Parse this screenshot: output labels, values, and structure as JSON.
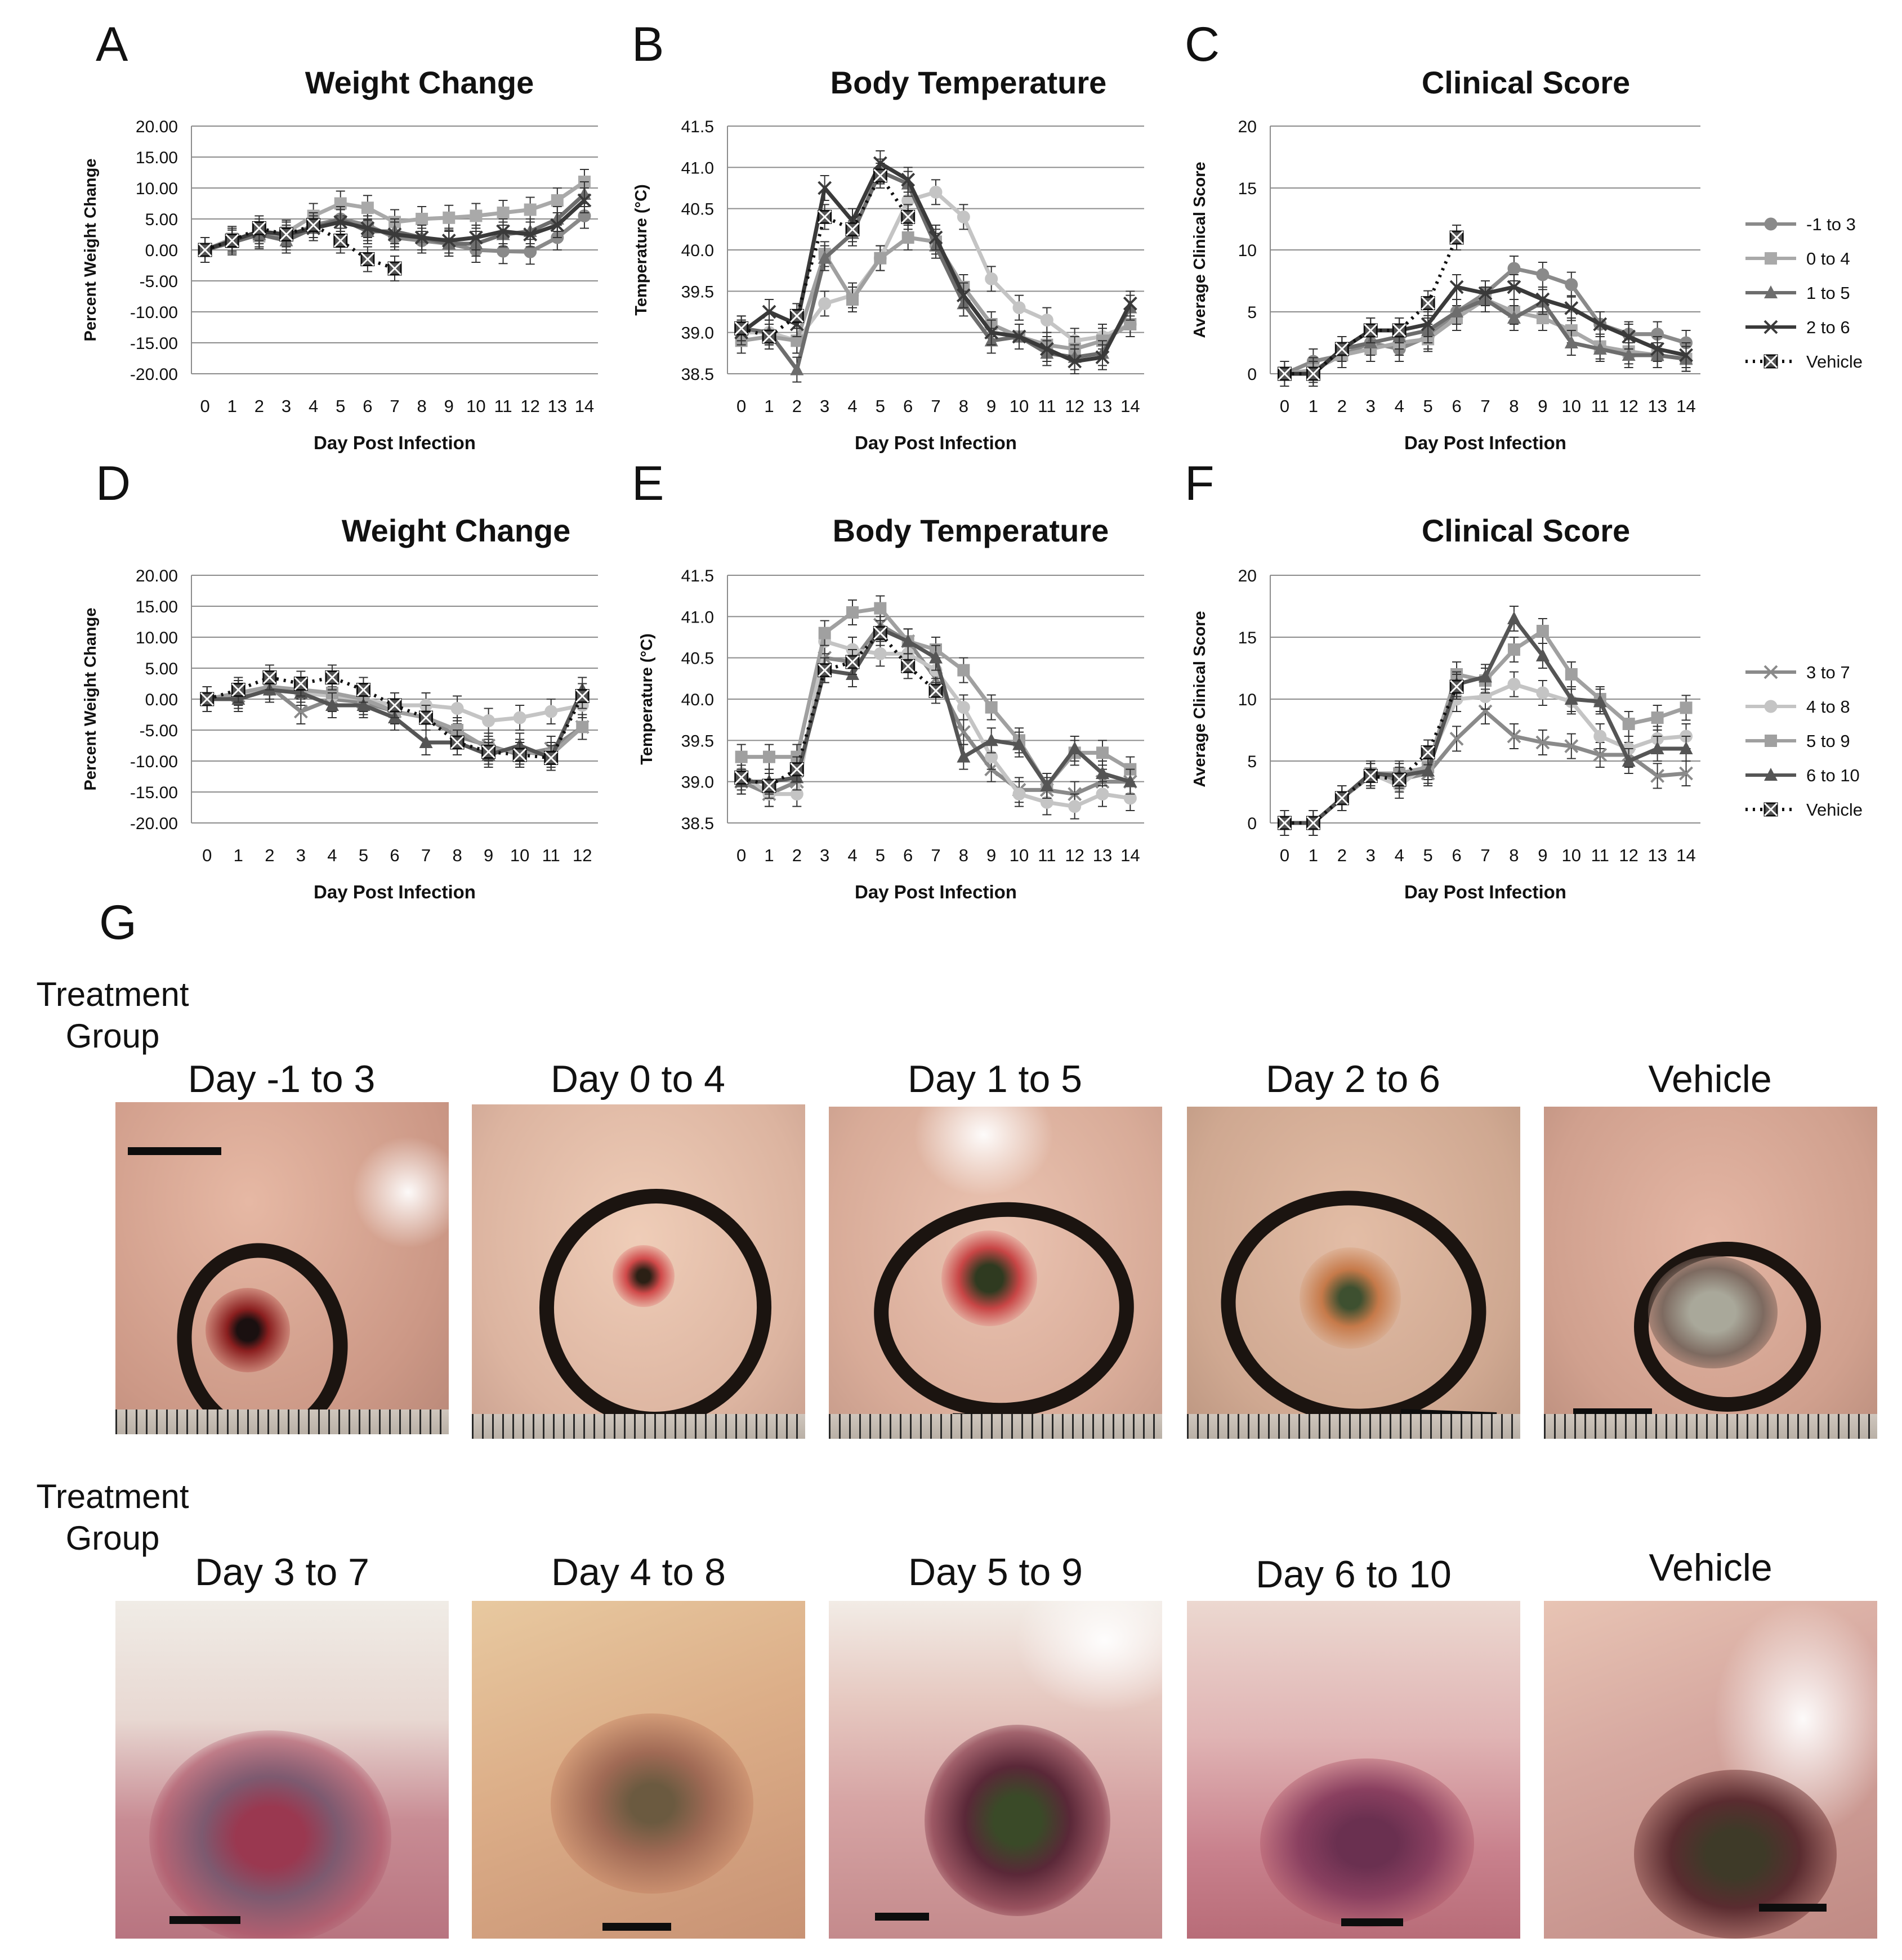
{
  "panel_letters": [
    "A",
    "B",
    "C",
    "D",
    "E",
    "F",
    "G"
  ],
  "chart_data": [
    {
      "id": "A",
      "type": "line",
      "title": "Weight Change",
      "xlabel": "Day Post Infection",
      "ylabel": "Percent Weight Change",
      "x": [
        0,
        1,
        2,
        3,
        4,
        5,
        6,
        7,
        8,
        9,
        10,
        11,
        12,
        13,
        14
      ],
      "xticks": [
        "0",
        "1",
        "2",
        "3",
        "4",
        "5",
        "6",
        "7",
        "8",
        "9",
        "10",
        "11",
        "12",
        "13",
        "14"
      ],
      "ylim": [
        -20,
        20
      ],
      "yticks": [
        "20.00",
        "15.00",
        "10.00",
        "5.00",
        "0.00",
        "-5.00",
        "-10.00",
        "-15.00",
        "-20.00"
      ],
      "series": [
        {
          "name": "-1 to 3",
          "values": [
            0,
            1.5,
            2.5,
            2,
            4,
            5,
            4,
            2,
            1.5,
            1,
            0,
            -0.2,
            -0.3,
            2,
            5.5
          ],
          "color": "#8a8a8a",
          "marker": "circle"
        },
        {
          "name": "0 to 4",
          "values": [
            0,
            1.8,
            2.2,
            2.8,
            5.5,
            7.5,
            6.8,
            4.5,
            5,
            5.2,
            5.5,
            6,
            6.5,
            8,
            11
          ],
          "color": "#a9a9a9",
          "marker": "square"
        },
        {
          "name": "1 to 5",
          "values": [
            0,
            1.2,
            2.5,
            1.5,
            3.5,
            5,
            3,
            3,
            2,
            1,
            1,
            2.5,
            3,
            5,
            9
          ],
          "color": "#6d6d6d",
          "marker": "triangle"
        },
        {
          "name": "2 to 6",
          "values": [
            0,
            1.5,
            3,
            2.5,
            3.5,
            4.5,
            3.5,
            2.5,
            2,
            1.5,
            2,
            3,
            2.5,
            4,
            8
          ],
          "color": "#3a3a3a",
          "marker": "x"
        },
        {
          "name": "Vehicle",
          "values": [
            0,
            1.5,
            3.5,
            2.5,
            4,
            1.5,
            -1.5,
            -3,
            null,
            null,
            null,
            null,
            null,
            null,
            null
          ],
          "color": "#111111",
          "marker": "xbox",
          "dotted": true
        }
      ]
    },
    {
      "id": "B",
      "type": "line",
      "title": "Body Temperature",
      "xlabel": "Day Post Infection",
      "ylabel": "Temperature (°C)",
      "x": [
        0,
        1,
        2,
        3,
        4,
        5,
        6,
        7,
        8,
        9,
        10,
        11,
        12,
        13,
        14
      ],
      "xticks": [
        "0",
        "1",
        "2",
        "3",
        "4",
        "5",
        "6",
        "7",
        "8",
        "9",
        "10",
        "11",
        "12",
        "13",
        "14"
      ],
      "ylim": [
        38.5,
        41.5
      ],
      "yticks": [
        "41.5",
        "41.0",
        "40.5",
        "40.0",
        "39.5",
        "39.0",
        "38.5"
      ],
      "series": [
        {
          "name": "-1 to 3",
          "values": [
            39.0,
            39.0,
            38.9,
            39.35,
            39.45,
            39.9,
            40.6,
            40.7,
            40.4,
            39.65,
            39.3,
            39.15,
            38.9,
            38.95,
            39.1
          ],
          "color": "#c4c4c4",
          "marker": "circle"
        },
        {
          "name": "0 to 4",
          "values": [
            38.9,
            38.95,
            38.9,
            39.95,
            39.4,
            39.9,
            40.15,
            40.1,
            39.55,
            39.1,
            38.95,
            38.85,
            38.8,
            38.9,
            39.1
          ],
          "color": "#a0a0a0",
          "marker": "square"
        },
        {
          "name": "1 to 5",
          "values": [
            39.05,
            39.0,
            38.55,
            39.9,
            40.2,
            40.95,
            40.8,
            40.05,
            39.35,
            38.9,
            38.95,
            38.75,
            38.7,
            38.75,
            39.3
          ],
          "color": "#6d6d6d",
          "marker": "triangle"
        },
        {
          "name": "2 to 6",
          "values": [
            39.0,
            39.25,
            39.1,
            40.75,
            40.35,
            41.05,
            40.85,
            40.15,
            39.45,
            39.0,
            38.95,
            38.8,
            38.65,
            38.7,
            39.35
          ],
          "color": "#3a3a3a",
          "marker": "x"
        },
        {
          "name": "Vehicle",
          "values": [
            39.05,
            38.95,
            39.2,
            40.4,
            40.25,
            40.9,
            40.4,
            null,
            null,
            null,
            null,
            null,
            null,
            null,
            null
          ],
          "color": "#111111",
          "marker": "xbox",
          "dotted": true
        }
      ]
    },
    {
      "id": "C",
      "type": "line",
      "title": "Clinical Score",
      "xlabel": "Day Post Infection",
      "ylabel": "Average Clinical Score",
      "x": [
        0,
        1,
        2,
        3,
        4,
        5,
        6,
        7,
        8,
        9,
        10,
        11,
        12,
        13,
        14
      ],
      "xticks": [
        "0",
        "1",
        "2",
        "3",
        "4",
        "5",
        "6",
        "7",
        "8",
        "9",
        "10",
        "11",
        "12",
        "13",
        "14"
      ],
      "ylim": [
        0,
        20
      ],
      "yticks": [
        "20",
        "15",
        "10",
        "5",
        "0"
      ],
      "series": [
        {
          "name": "-1 to 3",
          "values": [
            0,
            1,
            1.5,
            2.5,
            2,
            3,
            5,
            6.5,
            8.5,
            8,
            7.2,
            4,
            3.2,
            3.2,
            2.5
          ],
          "color": "#8a8a8a",
          "marker": "circle"
        },
        {
          "name": "0 to 4",
          "values": [
            0,
            0.3,
            1.5,
            2,
            2.5,
            2.8,
            4.5,
            6,
            5,
            4.5,
            3.5,
            2.2,
            1.8,
            1.5,
            1.2
          ],
          "color": "#a9a9a9",
          "marker": "square"
        },
        {
          "name": "1 to 5",
          "values": [
            0,
            0,
            2,
            2.5,
            3,
            3.5,
            5,
            6,
            4.5,
            5.8,
            2.5,
            2,
            1.5,
            1.5,
            1.2
          ],
          "color": "#6d6d6d",
          "marker": "triangle"
        },
        {
          "name": "2 to 6",
          "values": [
            0,
            0,
            2,
            3.5,
            3.5,
            4,
            7,
            6.5,
            7,
            6,
            5.3,
            4,
            3,
            2,
            1.5
          ],
          "color": "#3a3a3a",
          "marker": "x"
        },
        {
          "name": "Vehicle",
          "values": [
            0,
            0,
            2,
            3.5,
            3.5,
            5.7,
            11,
            null,
            null,
            null,
            null,
            null,
            null,
            null,
            null
          ],
          "color": "#111111",
          "marker": "xbox",
          "dotted": true
        }
      ]
    },
    {
      "id": "D",
      "type": "line",
      "title": "Weight Change",
      "xlabel": "Day Post Infection",
      "ylabel": "Percent Weight Change",
      "x": [
        0,
        1,
        2,
        3,
        4,
        5,
        6,
        7,
        8,
        9,
        10,
        11,
        12
      ],
      "xticks": [
        "0",
        "1",
        "2",
        "3",
        "4",
        "5",
        "6",
        "7",
        "8",
        "9",
        "10",
        "11",
        "12"
      ],
      "ylim": [
        -20,
        20
      ],
      "yticks": [
        "20.00",
        "15.00",
        "10.00",
        "5.00",
        "0.00",
        "-5.00",
        "-10.00",
        "-15.00",
        "-20.00"
      ],
      "series": [
        {
          "name": "3 to 7",
          "values": [
            0,
            0.5,
            2,
            -2,
            0,
            -0.5,
            -2,
            -3,
            -6,
            -7.5,
            -9,
            -8,
            -4.5
          ],
          "color": "#8a8a8a",
          "marker": "x"
        },
        {
          "name": "4 to 8",
          "values": [
            0,
            1,
            1.5,
            1,
            0.5,
            0,
            -1,
            -1,
            -1.5,
            -3.5,
            -3,
            -2,
            -1
          ],
          "color": "#c4c4c4",
          "marker": "circle"
        },
        {
          "name": "5 to 9",
          "values": [
            0,
            1,
            2,
            1.5,
            1,
            0,
            -2,
            -3,
            -5,
            -8,
            -8.5,
            -9,
            -4.5
          ],
          "color": "#a0a0a0",
          "marker": "square"
        },
        {
          "name": "6 to 10",
          "values": [
            0,
            0,
            1.5,
            1,
            -1,
            -1,
            -3,
            -7,
            -7,
            -9,
            -7.5,
            -9.5,
            1.5
          ],
          "color": "#555555",
          "marker": "triangle"
        },
        {
          "name": "Vehicle",
          "values": [
            0,
            1.5,
            3.5,
            2.5,
            3.5,
            1.5,
            -1,
            -3,
            -7,
            -8.5,
            -9,
            -9.5,
            0.5
          ],
          "color": "#111111",
          "marker": "xbox",
          "dotted": true
        }
      ]
    },
    {
      "id": "E",
      "type": "line",
      "title": "Body Temperature",
      "xlabel": "Day Post Infection",
      "ylabel": "Temperature (°C)",
      "x": [
        0,
        1,
        2,
        3,
        4,
        5,
        6,
        7,
        8,
        9,
        10,
        11,
        12,
        13,
        14
      ],
      "xticks": [
        "0",
        "1",
        "2",
        "3",
        "4",
        "5",
        "6",
        "7",
        "8",
        "9",
        "10",
        "11",
        "12",
        "13",
        "14"
      ],
      "ylim": [
        38.5,
        41.5
      ],
      "yticks": [
        "41.5",
        "41.0",
        "40.5",
        "40.0",
        "39.5",
        "39.0",
        "38.5"
      ],
      "series": [
        {
          "name": "3 to 7",
          "values": [
            39.0,
            38.85,
            39.0,
            40.5,
            40.45,
            40.9,
            40.7,
            40.25,
            39.6,
            39.15,
            38.9,
            38.9,
            38.85,
            39.0,
            39.0
          ],
          "color": "#8a8a8a",
          "marker": "x"
        },
        {
          "name": "4 to 8",
          "values": [
            39.1,
            38.85,
            38.85,
            40.7,
            40.6,
            40.55,
            40.55,
            40.35,
            39.9,
            39.3,
            38.85,
            38.75,
            38.7,
            38.85,
            38.8
          ],
          "color": "#c4c4c4",
          "marker": "circle"
        },
        {
          "name": "5 to 9",
          "values": [
            39.3,
            39.3,
            39.3,
            40.8,
            41.05,
            41.1,
            40.7,
            40.6,
            40.35,
            39.9,
            39.5,
            38.95,
            39.35,
            39.35,
            39.15
          ],
          "color": "#a0a0a0",
          "marker": "square"
        },
        {
          "name": "6 to 10",
          "values": [
            39.0,
            39.0,
            39.05,
            40.35,
            40.3,
            40.85,
            40.7,
            40.5,
            39.3,
            39.5,
            39.45,
            38.95,
            39.4,
            39.1,
            39.0
          ],
          "color": "#555555",
          "marker": "triangle"
        },
        {
          "name": "Vehicle",
          "values": [
            39.05,
            38.95,
            39.15,
            40.35,
            40.45,
            40.8,
            40.4,
            40.1,
            null,
            null,
            null,
            null,
            null,
            null,
            null
          ],
          "color": "#111111",
          "marker": "xbox",
          "dotted": true
        }
      ]
    },
    {
      "id": "F",
      "type": "line",
      "title": "Clinical Score",
      "xlabel": "Day Post Infection",
      "ylabel": "Average Clinical Score",
      "x": [
        0,
        1,
        2,
        3,
        4,
        5,
        6,
        7,
        8,
        9,
        10,
        11,
        12,
        13,
        14
      ],
      "xticks": [
        "0",
        "1",
        "2",
        "3",
        "4",
        "5",
        "6",
        "7",
        "8",
        "9",
        "10",
        "11",
        "12",
        "13",
        "14"
      ],
      "ylim": [
        0,
        20
      ],
      "yticks": [
        "20",
        "15",
        "10",
        "5",
        "0"
      ],
      "series": [
        {
          "name": "3 to 7",
          "values": [
            0,
            0,
            2,
            3.8,
            3.5,
            4,
            6.8,
            9,
            7,
            6.5,
            6.2,
            5.5,
            5.5,
            3.8,
            4
          ],
          "color": "#8a8a8a",
          "marker": "x"
        },
        {
          "name": "4 to 8",
          "values": [
            0,
            0,
            2,
            4,
            3,
            4.8,
            10,
            10.2,
            11.2,
            10.5,
            9.8,
            7,
            6,
            6.8,
            7
          ],
          "color": "#c4c4c4",
          "marker": "circle"
        },
        {
          "name": "5 to 9",
          "values": [
            0,
            0,
            2,
            4,
            4,
            4.5,
            12,
            11.5,
            14,
            15.5,
            12,
            10,
            8,
            8.5,
            9.3
          ],
          "color": "#a0a0a0",
          "marker": "square"
        },
        {
          "name": "6 to 10",
          "values": [
            0,
            0,
            2,
            4,
            3.8,
            4.2,
            11.2,
            11.8,
            16.5,
            13.5,
            10,
            9.8,
            5,
            6,
            6
          ],
          "color": "#555555",
          "marker": "triangle"
        },
        {
          "name": "Vehicle",
          "values": [
            0,
            0,
            2,
            3.8,
            3.5,
            5.7,
            11,
            null,
            null,
            null,
            null,
            null,
            null,
            null,
            null
          ],
          "color": "#111111",
          "marker": "xbox",
          "dotted": true
        }
      ]
    }
  ],
  "legend_top": [
    {
      "label": "-1 to 3",
      "color": "#8a8a8a",
      "marker": "circle"
    },
    {
      "label": "0 to 4",
      "color": "#a9a9a9",
      "marker": "square"
    },
    {
      "label": "1 to 5",
      "color": "#6d6d6d",
      "marker": "triangle"
    },
    {
      "label": "2 to 6",
      "color": "#3a3a3a",
      "marker": "x"
    },
    {
      "label": "Vehicle",
      "color": "#111111",
      "marker": "xbox",
      "dotted": true
    }
  ],
  "legend_bottom": [
    {
      "label": "3 to 7",
      "color": "#8a8a8a",
      "marker": "x"
    },
    {
      "label": "4 to 8",
      "color": "#c4c4c4",
      "marker": "circle"
    },
    {
      "label": "5 to 9",
      "color": "#a0a0a0",
      "marker": "square"
    },
    {
      "label": "6 to 10",
      "color": "#555555",
      "marker": "triangle"
    },
    {
      "label": "Vehicle",
      "color": "#111111",
      "marker": "xbox",
      "dotted": true
    }
  ],
  "photos": {
    "treatment_group_label": "Treatment Group",
    "row1": [
      "Day -1 to 3",
      "Day 0 to 4",
      "Day 1 to 5",
      "Day 2 to 6",
      "Vehicle"
    ],
    "row2": [
      "Day 3 to 7",
      "Day 4 to 8",
      "Day 5 to 9",
      "Day 6 to 10",
      "Vehicle"
    ]
  }
}
